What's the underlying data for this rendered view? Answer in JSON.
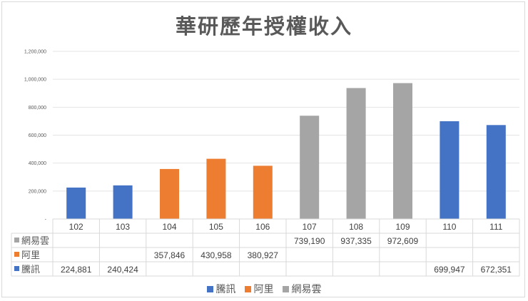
{
  "chart_data": {
    "type": "bar",
    "title": "華研歷年授權收入",
    "categories": [
      "102",
      "103",
      "104",
      "105",
      "106",
      "107",
      "108",
      "109",
      "110",
      "111"
    ],
    "series": [
      {
        "name": "騰訊",
        "color": "#4472c4",
        "values": [
          224881,
          240424,
          null,
          null,
          null,
          null,
          null,
          null,
          699947,
          672351
        ]
      },
      {
        "name": "阿里",
        "color": "#ed7d31",
        "values": [
          null,
          null,
          357846,
          430958,
          380927,
          null,
          null,
          null,
          null,
          null
        ]
      },
      {
        "name": "網易雲",
        "color": "#a5a5a5",
        "values": [
          null,
          null,
          null,
          null,
          null,
          739190,
          937335,
          972609,
          null,
          null
        ]
      }
    ],
    "ylim": [
      0,
      1200000
    ],
    "yticks": [
      "-",
      "200,000",
      "400,000",
      "600,000",
      "800,000",
      "1,000,000",
      "1,200,000"
    ],
    "grid": true,
    "legend": "bottom",
    "data_table": true
  }
}
